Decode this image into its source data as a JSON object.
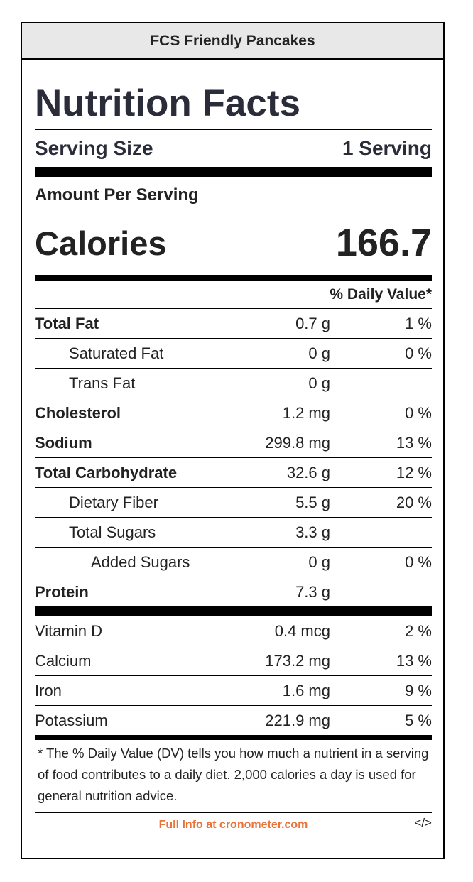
{
  "recipe_title": "FCS Friendly Pancakes",
  "heading": "Nutrition Facts",
  "serving": {
    "label": "Serving Size",
    "value": "1 Serving"
  },
  "amount_per_serving": "Amount Per Serving",
  "calories": {
    "label": "Calories",
    "value": "166.7"
  },
  "daily_value_header": "% Daily Value*",
  "nutrients": [
    {
      "name": "Total Fat",
      "amount": "0.7 g",
      "dv": "1 %"
    },
    {
      "name": "Saturated Fat",
      "amount": "0 g",
      "dv": "0 %"
    },
    {
      "name": "Trans Fat",
      "amount": "0 g",
      "dv": ""
    },
    {
      "name": "Cholesterol",
      "amount": "1.2 mg",
      "dv": "0 %"
    },
    {
      "name": "Sodium",
      "amount": "299.8 mg",
      "dv": "13 %"
    },
    {
      "name": "Total Carbohydrate",
      "amount": "32.6 g",
      "dv": "12 %"
    },
    {
      "name": "Dietary Fiber",
      "amount": "5.5 g",
      "dv": "20 %"
    },
    {
      "name": "Total Sugars",
      "amount": "3.3 g",
      "dv": ""
    },
    {
      "name": "Added Sugars",
      "amount": "0 g",
      "dv": "0 %"
    },
    {
      "name": "Protein",
      "amount": "7.3 g",
      "dv": ""
    }
  ],
  "vitamins": [
    {
      "name": "Vitamin D",
      "amount": "0.4 mcg",
      "dv": "2 %"
    },
    {
      "name": "Calcium",
      "amount": "173.2 mg",
      "dv": "13 %"
    },
    {
      "name": "Iron",
      "amount": "1.6 mg",
      "dv": "9 %"
    },
    {
      "name": "Potassium",
      "amount": "221.9 mg",
      "dv": "5 %"
    }
  ],
  "footnote": "* The % Daily Value (DV) tells you how much a nutrient in a serving of food contributes to a daily diet. 2,000 calories a day is used for general nutrition advice.",
  "footer": {
    "link_text": "Full Info at cronometer.com",
    "embed_icon": "</>"
  },
  "colors": {
    "title_bar_bg": "#e8e8e8",
    "link": "#e8743b",
    "heading": "#2a2c3a"
  }
}
